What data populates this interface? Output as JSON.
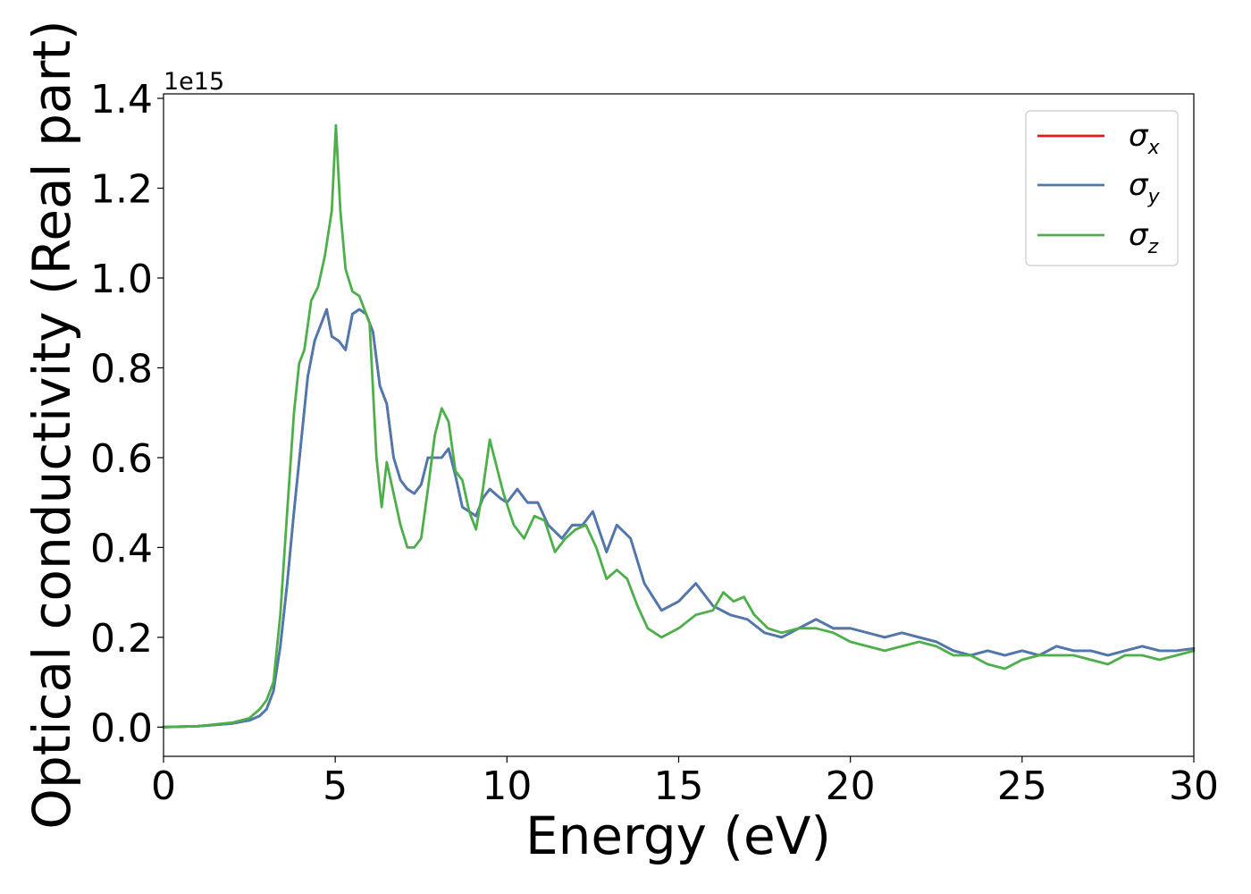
{
  "chart_data": {
    "type": "line",
    "xlabel": "Energy (eV)",
    "ylabel": "Optical conductivity (Real part)",
    "y_offset_label": "1e15",
    "xlim": [
      0,
      30
    ],
    "ylim": [
      -0.065,
      1.41
    ],
    "xticks": [
      0,
      5,
      10,
      15,
      20,
      25,
      30
    ],
    "xtick_labels": [
      "0",
      "5",
      "10",
      "15",
      "20",
      "25",
      "30"
    ],
    "yticks": [
      0.0,
      0.2,
      0.4,
      0.6,
      0.8,
      1.0,
      1.2,
      1.4
    ],
    "ytick_labels": [
      "0.0",
      "0.2",
      "0.4",
      "0.6",
      "0.8",
      "1.0",
      "1.2",
      "1.4"
    ],
    "grid": false,
    "legend_position": "top-right",
    "series": [
      {
        "name": "σx",
        "symbol": "σ",
        "subscript": "x",
        "color": "#e41a1c",
        "x": [
          0,
          1,
          2,
          2.5,
          2.8,
          3.0,
          3.2,
          3.4,
          3.6,
          3.8,
          4.0,
          4.2,
          4.4,
          4.6,
          4.75,
          4.9,
          5.1,
          5.3,
          5.5,
          5.7,
          5.9,
          6.1,
          6.3,
          6.5,
          6.7,
          6.9,
          7.1,
          7.3,
          7.5,
          7.7,
          7.9,
          8.1,
          8.3,
          8.5,
          8.7,
          8.9,
          9.1,
          9.3,
          9.5,
          9.8,
          10.0,
          10.3,
          10.6,
          10.9,
          11.2,
          11.6,
          11.9,
          12.2,
          12.5,
          12.9,
          13.2,
          13.6,
          14.0,
          14.5,
          15.0,
          15.5,
          16.0,
          16.5,
          17.0,
          17.5,
          18.0,
          18.5,
          19.0,
          19.5,
          20.0,
          20.5,
          21.0,
          21.5,
          22.0,
          22.5,
          23.0,
          23.5,
          24.0,
          24.5,
          25.0,
          25.5,
          26.0,
          26.5,
          27.0,
          27.5,
          28.0,
          28.5,
          29.0,
          29.5,
          30.0
        ],
        "values": [
          0.0,
          0.002,
          0.008,
          0.015,
          0.025,
          0.04,
          0.08,
          0.18,
          0.32,
          0.48,
          0.63,
          0.78,
          0.86,
          0.9,
          0.93,
          0.87,
          0.86,
          0.84,
          0.92,
          0.93,
          0.92,
          0.88,
          0.76,
          0.72,
          0.6,
          0.55,
          0.53,
          0.52,
          0.54,
          0.6,
          0.6,
          0.6,
          0.62,
          0.56,
          0.49,
          0.48,
          0.47,
          0.51,
          0.53,
          0.51,
          0.5,
          0.53,
          0.5,
          0.5,
          0.45,
          0.42,
          0.45,
          0.45,
          0.48,
          0.39,
          0.45,
          0.42,
          0.32,
          0.26,
          0.28,
          0.32,
          0.27,
          0.25,
          0.24,
          0.21,
          0.2,
          0.22,
          0.24,
          0.22,
          0.22,
          0.21,
          0.2,
          0.21,
          0.2,
          0.19,
          0.17,
          0.16,
          0.17,
          0.16,
          0.17,
          0.16,
          0.18,
          0.17,
          0.17,
          0.16,
          0.17,
          0.18,
          0.17,
          0.17,
          0.175
        ]
      },
      {
        "name": "σy",
        "symbol": "σ",
        "subscript": "y",
        "color": "#4a7ab0",
        "x": [
          0,
          1,
          2,
          2.5,
          2.8,
          3.0,
          3.2,
          3.4,
          3.6,
          3.8,
          4.0,
          4.2,
          4.4,
          4.6,
          4.75,
          4.9,
          5.1,
          5.3,
          5.5,
          5.7,
          5.9,
          6.1,
          6.3,
          6.5,
          6.7,
          6.9,
          7.1,
          7.3,
          7.5,
          7.7,
          7.9,
          8.1,
          8.3,
          8.5,
          8.7,
          8.9,
          9.1,
          9.3,
          9.5,
          9.8,
          10.0,
          10.3,
          10.6,
          10.9,
          11.2,
          11.6,
          11.9,
          12.2,
          12.5,
          12.9,
          13.2,
          13.6,
          14.0,
          14.5,
          15.0,
          15.5,
          16.0,
          16.5,
          17.0,
          17.5,
          18.0,
          18.5,
          19.0,
          19.5,
          20.0,
          20.5,
          21.0,
          21.5,
          22.0,
          22.5,
          23.0,
          23.5,
          24.0,
          24.5,
          25.0,
          25.5,
          26.0,
          26.5,
          27.0,
          27.5,
          28.0,
          28.5,
          29.0,
          29.5,
          30.0
        ],
        "values": [
          0.0,
          0.002,
          0.008,
          0.015,
          0.025,
          0.04,
          0.08,
          0.18,
          0.32,
          0.48,
          0.63,
          0.78,
          0.86,
          0.9,
          0.93,
          0.87,
          0.86,
          0.84,
          0.92,
          0.93,
          0.92,
          0.88,
          0.76,
          0.72,
          0.6,
          0.55,
          0.53,
          0.52,
          0.54,
          0.6,
          0.6,
          0.6,
          0.62,
          0.56,
          0.49,
          0.48,
          0.47,
          0.51,
          0.53,
          0.51,
          0.5,
          0.53,
          0.5,
          0.5,
          0.45,
          0.42,
          0.45,
          0.45,
          0.48,
          0.39,
          0.45,
          0.42,
          0.32,
          0.26,
          0.28,
          0.32,
          0.27,
          0.25,
          0.24,
          0.21,
          0.2,
          0.22,
          0.24,
          0.22,
          0.22,
          0.21,
          0.2,
          0.21,
          0.2,
          0.19,
          0.17,
          0.16,
          0.17,
          0.16,
          0.17,
          0.16,
          0.18,
          0.17,
          0.17,
          0.16,
          0.17,
          0.18,
          0.17,
          0.17,
          0.175
        ]
      },
      {
        "name": "σz",
        "symbol": "σ",
        "subscript": "z",
        "color": "#4daf4a",
        "x": [
          0,
          1,
          2,
          2.5,
          2.8,
          3.0,
          3.2,
          3.4,
          3.6,
          3.8,
          3.95,
          4.1,
          4.3,
          4.5,
          4.7,
          4.9,
          5.02,
          5.15,
          5.3,
          5.5,
          5.7,
          5.85,
          6.0,
          6.2,
          6.35,
          6.5,
          6.7,
          6.9,
          7.1,
          7.3,
          7.5,
          7.7,
          7.9,
          8.1,
          8.3,
          8.5,
          8.7,
          8.9,
          9.1,
          9.3,
          9.5,
          9.7,
          9.9,
          10.2,
          10.5,
          10.8,
          11.1,
          11.4,
          11.7,
          12.0,
          12.3,
          12.6,
          12.9,
          13.2,
          13.5,
          13.8,
          14.1,
          14.5,
          15.0,
          15.5,
          16.0,
          16.3,
          16.6,
          16.9,
          17.2,
          17.6,
          18.0,
          18.5,
          19.0,
          19.5,
          20.0,
          20.5,
          21.0,
          21.5,
          22.0,
          22.5,
          23.0,
          23.5,
          24.0,
          24.5,
          25.0,
          25.5,
          26.0,
          26.5,
          27.0,
          27.5,
          28.0,
          28.5,
          29.0,
          29.5,
          30.0
        ],
        "values": [
          0.0,
          0.002,
          0.01,
          0.02,
          0.04,
          0.06,
          0.1,
          0.25,
          0.48,
          0.7,
          0.81,
          0.84,
          0.95,
          0.98,
          1.05,
          1.15,
          1.34,
          1.15,
          1.02,
          0.97,
          0.96,
          0.93,
          0.9,
          0.6,
          0.49,
          0.59,
          0.52,
          0.45,
          0.4,
          0.4,
          0.42,
          0.53,
          0.65,
          0.71,
          0.68,
          0.57,
          0.55,
          0.48,
          0.44,
          0.53,
          0.64,
          0.58,
          0.52,
          0.45,
          0.42,
          0.47,
          0.46,
          0.39,
          0.42,
          0.44,
          0.45,
          0.4,
          0.33,
          0.35,
          0.33,
          0.27,
          0.22,
          0.2,
          0.22,
          0.25,
          0.26,
          0.3,
          0.28,
          0.29,
          0.25,
          0.22,
          0.21,
          0.22,
          0.22,
          0.21,
          0.19,
          0.18,
          0.17,
          0.18,
          0.19,
          0.18,
          0.16,
          0.16,
          0.14,
          0.13,
          0.15,
          0.16,
          0.16,
          0.16,
          0.15,
          0.14,
          0.16,
          0.16,
          0.15,
          0.16,
          0.17
        ]
      }
    ]
  }
}
